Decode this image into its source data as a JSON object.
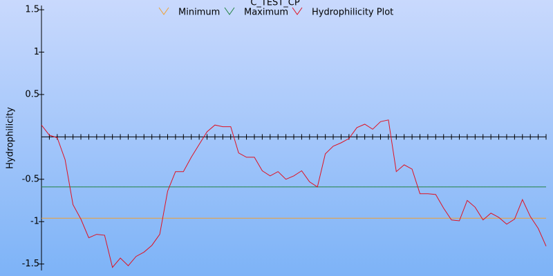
{
  "chart_data": {
    "type": "line",
    "title": "C_TEST_CP",
    "y_label": "Hydrophilicity",
    "ylim": [
      -1.56,
      1.55
    ],
    "yticks": [
      1.5,
      1,
      0.5,
      -0.5,
      -1,
      -1.5
    ],
    "series": [
      {
        "name": "Minimum",
        "color": "#f0a030",
        "level": -0.96
      },
      {
        "name": "Maximum",
        "color": "#208040",
        "level": -0.59
      },
      {
        "name": "Hydrophilicity Plot",
        "color": "#e01020",
        "values": [
          0.14,
          0.02,
          -0.01,
          -0.27,
          -0.8,
          -0.97,
          -1.19,
          -1.15,
          -1.16,
          -1.54,
          -1.43,
          -1.52,
          -1.41,
          -1.36,
          -1.28,
          -1.15,
          -0.64,
          -0.41,
          -0.41,
          -0.24,
          -0.09,
          0.06,
          0.14,
          0.12,
          0.12,
          -0.19,
          -0.24,
          -0.24,
          -0.4,
          -0.46,
          -0.41,
          -0.5,
          -0.46,
          -0.4,
          -0.53,
          -0.59,
          -0.2,
          -0.11,
          -0.07,
          -0.02,
          0.11,
          0.15,
          0.09,
          0.18,
          0.2,
          -0.41,
          -0.33,
          -0.38,
          -0.67,
          -0.67,
          -0.68,
          -0.84,
          -0.98,
          -0.99,
          -0.75,
          -0.83,
          -0.98,
          -0.9,
          -0.95,
          -1.03,
          -0.97,
          -0.74,
          -0.94,
          -1.08,
          -1.29
        ]
      }
    ]
  }
}
